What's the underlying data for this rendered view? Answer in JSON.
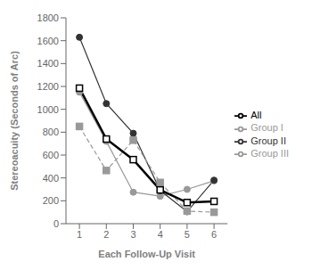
{
  "chart_data": {
    "type": "line",
    "x": [
      1,
      2,
      3,
      4,
      5,
      6
    ],
    "series": [
      {
        "name": "Group I",
        "color": "#999999",
        "values": [
          1150,
          720,
          275,
          240,
          300,
          375
        ],
        "marker": "circle",
        "line_style": "solid"
      },
      {
        "name": "Group II",
        "color": "#333333",
        "values": [
          1630,
          1050,
          790,
          290,
          105,
          380
        ],
        "marker": "circle",
        "line_style": "solid"
      },
      {
        "name": "Group III",
        "color": "#999999",
        "values": [
          850,
          465,
          730,
          360,
          110,
          100
        ],
        "marker": "square",
        "line_style": "dashed"
      },
      {
        "name": "All",
        "color": "#000000",
        "values": [
          1185,
          740,
          560,
          295,
          185,
          195
        ],
        "marker": "square_open",
        "line_style": "solid"
      }
    ],
    "xlabel": "Each Follow-Up Visit",
    "ylabel": "Stereoacuity (Seconds of Arc)",
    "xlim": [
      0.5,
      6.5
    ],
    "xticks": [
      1,
      2,
      3,
      4,
      5,
      6
    ],
    "ylim": [
      0,
      1800
    ],
    "yticks": [
      0,
      200,
      400,
      600,
      800,
      1000,
      1200,
      1400,
      1600,
      1800
    ],
    "grid": false,
    "legend": "right"
  }
}
